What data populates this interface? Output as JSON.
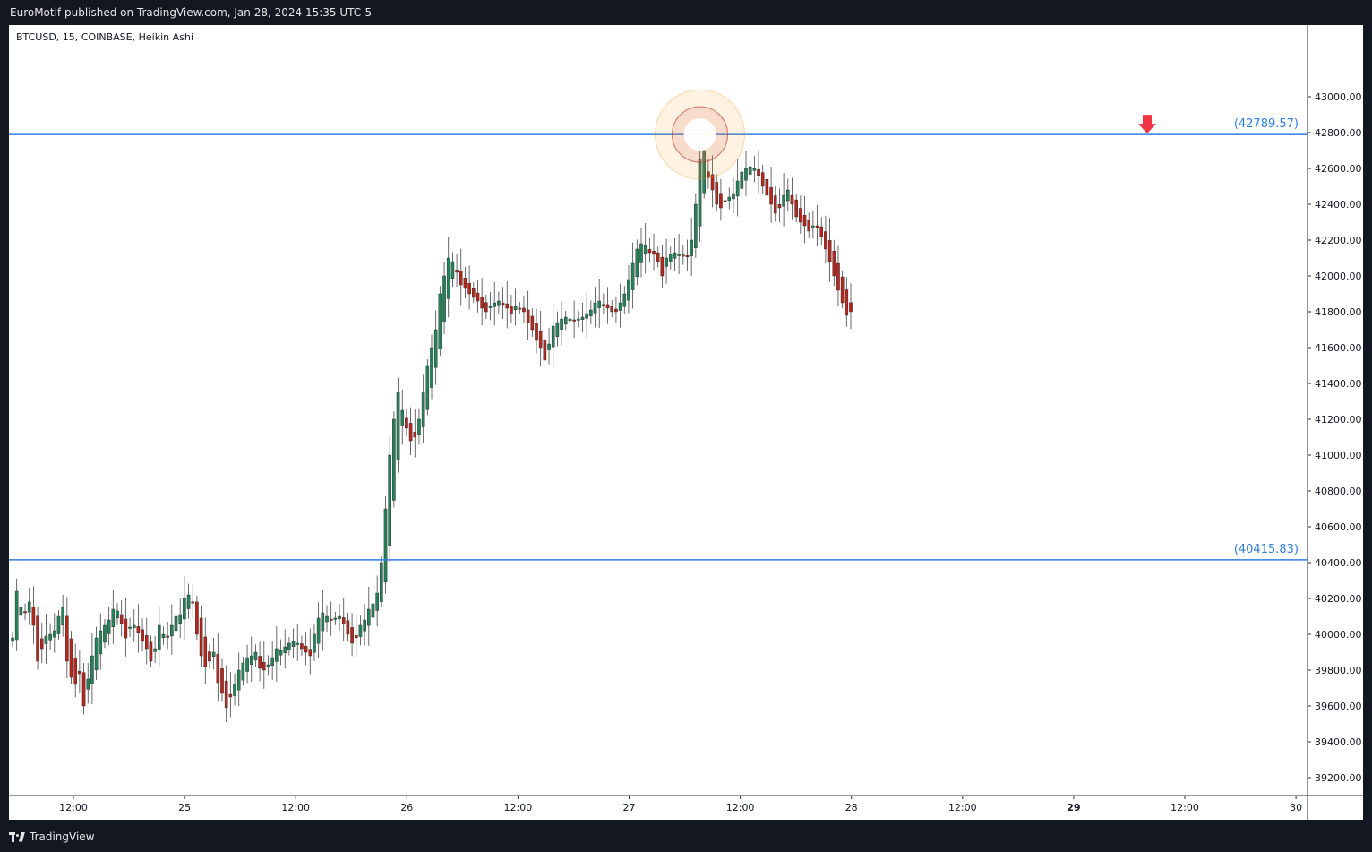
{
  "header": {
    "published": "EuroMotif published on TradingView.com, Jan 28, 2024 15:35 UTC-5"
  },
  "footer": {
    "brand": "TradingView"
  },
  "colors": {
    "up": "#26805a",
    "down": "#b2271e",
    "line": "#2f7de1",
    "arrow": "#f23645",
    "circle": "#f7931a"
  },
  "chart_data": {
    "type": "candlestick",
    "symbol": "BTCUSD, 15, COINBASE, Heikin Ashi",
    "ylim": [
      39100,
      43400
    ],
    "y_ticks": [
      "39200.00",
      "39400.00",
      "39600.00",
      "39800.00",
      "40000.00",
      "40200.00",
      "40400.00",
      "40600.00",
      "40800.00",
      "41000.00",
      "41200.00",
      "41400.00",
      "41600.00",
      "41800.00",
      "42000.00",
      "42200.00",
      "42400.00",
      "42600.00",
      "42800.00",
      "43000.00"
    ],
    "x_ticks": [
      "12:00",
      "25",
      "12:00",
      "26",
      "12:00",
      "27",
      "12:00",
      "28",
      "12:00",
      "29",
      "12:00",
      "30"
    ],
    "x_ticks_bold": [
      "29"
    ],
    "levels": [
      {
        "label": "(42789.57)",
        "value": 42789.57
      },
      {
        "label": "(40415.83)",
        "value": 40415.83
      }
    ],
    "highlight": {
      "index": 164,
      "value": 42789.57
    },
    "arrow_index": 220,
    "closes": [
      39980,
      40240,
      40150,
      40120,
      40180,
      40050,
      39850,
      39920,
      39990,
      40000,
      40020,
      40100,
      40150,
      39850,
      39760,
      39720,
      39780,
      39600,
      39750,
      39880,
      39980,
      40020,
      40050,
      40080,
      40140,
      40130,
      40060,
      39980,
      40040,
      40050,
      40010,
      39960,
      39920,
      39850,
      39920,
      40050,
      40000,
      39990,
      40050,
      40100,
      40110,
      40200,
      40220,
      40180,
      40000,
      39880,
      39820,
      39850,
      39900,
      39730,
      39670,
      39590,
      39650,
      39720,
      39800,
      39840,
      39870,
      39880,
      39900,
      39810,
      39800,
      39830,
      39870,
      39920,
      39910,
      39930,
      39950,
      39960,
      39950,
      39920,
      39900,
      39880,
      40000,
      40090,
      40120,
      40100,
      40080,
      40090,
      40100,
      40060,
      40000,
      39950,
      39980,
      40050,
      40080,
      40140,
      40170,
      40230,
      40400,
      40700,
      41000,
      41200,
      41350,
      41250,
      41150,
      41080,
      41100,
      41200,
      41350,
      41500,
      41600,
      41700,
      41900,
      42000,
      42100,
      42080,
      42020,
      41950,
      41930,
      41900,
      41880,
      41860,
      41820,
      41800,
      41830,
      41850,
      41860,
      41840,
      41820,
      41790,
      41830,
      41820,
      41800,
      41740,
      41700,
      41640,
      41600,
      41530,
      41620,
      41720,
      41740,
      41760,
      41770,
      41760,
      41750,
      41760,
      41770,
      41790,
      41810,
      41850,
      41860,
      41840,
      41820,
      41800,
      41800,
      41850,
      41900,
      41980,
      42070,
      42150,
      42180,
      42170,
      42130,
      42120,
      42080,
      42000,
      42100,
      42120,
      42130,
      42120,
      42110,
      42110,
      42200,
      42400,
      42650,
      42700,
      42550,
      42480,
      42400,
      42380,
      42420,
      42440,
      42460,
      42530,
      42580,
      42600,
      42610,
      42600,
      42560,
      42500,
      42450,
      42400,
      42350,
      42380,
      42450,
      42480,
      42400,
      42330,
      42300,
      42280,
      42250,
      42280,
      42270,
      42220,
      42150,
      42080,
      42000,
      41920,
      41850,
      41780,
      41800
    ]
  }
}
